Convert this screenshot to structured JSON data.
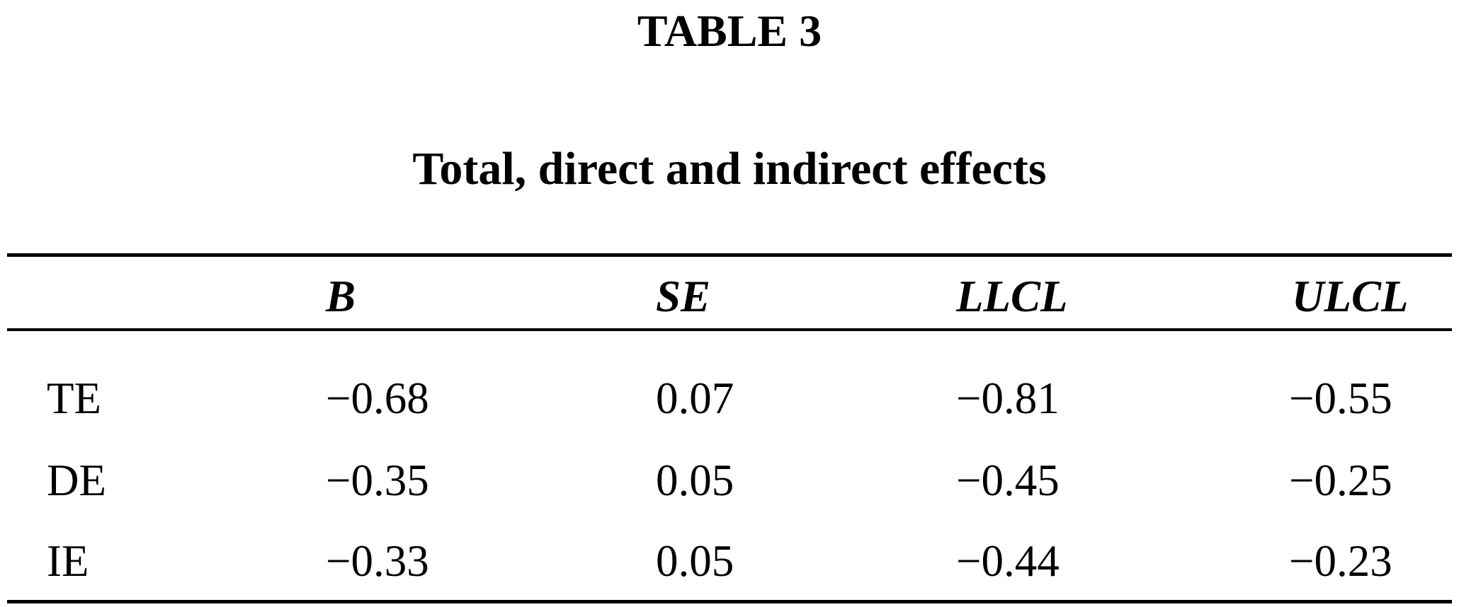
{
  "title": "TABLE 3",
  "caption": "Total, direct and indirect effects",
  "table": {
    "header": [
      "B",
      "SE",
      "LLCL",
      "ULCL"
    ],
    "rows": [
      [
        "TE",
        "−0.68",
        "0.07",
        "−0.81",
        "−0.55"
      ],
      [
        "DE",
        "−0.35",
        "0.05",
        "−0.45",
        "−0.25"
      ],
      [
        "IE",
        "−0.33",
        "0.05",
        "−0.44",
        "−0.23"
      ]
    ]
  }
}
